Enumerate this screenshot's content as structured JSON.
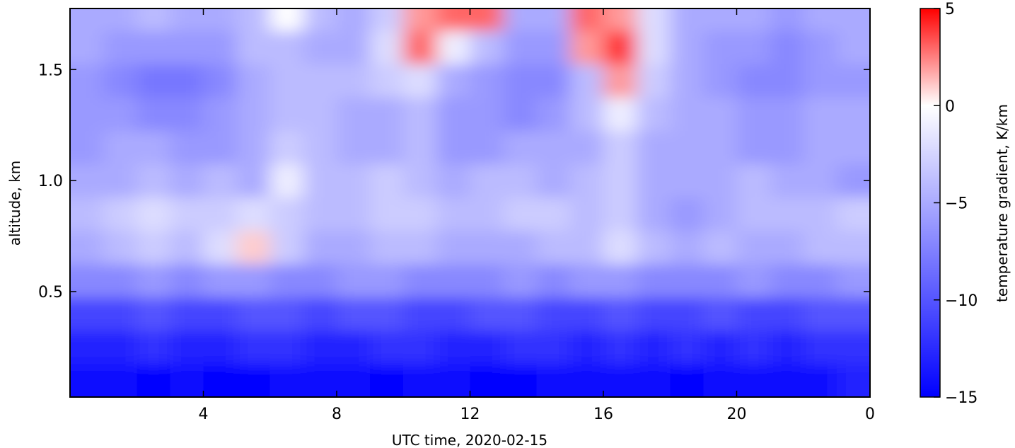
{
  "chart_data": {
    "type": "heatmap",
    "xlabel": "UTC time,  2020-02-15",
    "ylabel": "altitude, km",
    "colorbar_label": "temperature gradient, K/km",
    "xlim": [
      0,
      24
    ],
    "xticks": [
      4,
      8,
      12,
      16,
      20,
      {
        "value": 24,
        "label": "0"
      }
    ],
    "ylim": [
      0.025,
      1.775
    ],
    "yticks": [
      0.5,
      {
        "value": 1,
        "label": "1.0"
      },
      1.5
    ],
    "clim": [
      -15,
      5
    ],
    "vcenter": 0,
    "cticks": [
      5,
      0,
      {
        "value": -5,
        "label": "−5"
      },
      {
        "value": -10,
        "label": "−10"
      },
      {
        "value": -15,
        "label": "−15"
      }
    ],
    "colormap": [
      "#0000ff",
      "#ffffff",
      "#ff0000"
    ],
    "x": [
      0.5,
      1.5,
      2.5,
      3.5,
      4.5,
      5.5,
      6.5,
      7.5,
      8.5,
      9.5,
      10.5,
      11.5,
      12.5,
      13.5,
      14.5,
      15.5,
      16.5,
      17.5,
      18.5,
      19.5,
      20.5,
      21.5,
      22.5,
      23.5
    ],
    "y": [
      0.1,
      0.25,
      0.4,
      0.55,
      0.7,
      0.85,
      1.0,
      1.15,
      1.3,
      1.45,
      1.6,
      1.75
    ],
    "z": [
      [
        -14,
        -14,
        -15,
        -14,
        -15,
        -15,
        -14,
        -14,
        -14,
        -15,
        -14,
        -14,
        -15,
        -15,
        -14,
        -14,
        -14,
        -14,
        -15,
        -14,
        -14,
        -14,
        -14,
        -13
      ],
      [
        -13,
        -13,
        -12,
        -13,
        -13,
        -12,
        -12,
        -13,
        -13,
        -12,
        -12,
        -13,
        -13,
        -12,
        -12,
        -13,
        -12,
        -13,
        -12,
        -13,
        -12,
        -13,
        -12,
        -12
      ],
      [
        -11,
        -11,
        -10,
        -11,
        -11,
        -10,
        -10,
        -11,
        -10,
        -10,
        -11,
        -11,
        -10,
        -10,
        -11,
        -11,
        -10,
        -11,
        -11,
        -10,
        -11,
        -11,
        -10,
        -10
      ],
      [
        -7,
        -7,
        -6,
        -7,
        -6,
        -6,
        -7,
        -7,
        -6,
        -6,
        -7,
        -7,
        -7,
        -6,
        -7,
        -6,
        -6,
        -7,
        -7,
        -7,
        -6,
        -7,
        -7,
        -6
      ],
      [
        -5,
        -4,
        -3,
        -4,
        -2,
        1,
        -3,
        -5,
        -5,
        -4,
        -4,
        -5,
        -5,
        -5,
        -4,
        -4,
        -2,
        -4,
        -5,
        -4,
        -5,
        -5,
        -4,
        -4
      ],
      [
        -4,
        -3,
        -2,
        -3,
        -3,
        -2,
        -3,
        -4,
        -4,
        -3,
        -3,
        -4,
        -4,
        -3,
        -3,
        -4,
        -3,
        -5,
        -6,
        -5,
        -4,
        -4,
        -4,
        -3
      ],
      [
        -5,
        -5,
        -4,
        -5,
        -4,
        -5,
        -1,
        -4,
        -4,
        -3,
        -4,
        -5,
        -4,
        -4,
        -5,
        -4,
        -3,
        -5,
        -5,
        -5,
        -4,
        -5,
        -5,
        -6
      ],
      [
        -6,
        -5,
        -5,
        -6,
        -6,
        -5,
        -3,
        -4,
        -5,
        -5,
        -4,
        -6,
        -6,
        -5,
        -5,
        -5,
        -3,
        -5,
        -5,
        -5,
        -6,
        -6,
        -5,
        -5
      ],
      [
        -6,
        -6,
        -7,
        -7,
        -6,
        -5,
        -4,
        -4,
        -5,
        -5,
        -4,
        -6,
        -6,
        -7,
        -6,
        -4,
        -1,
        -4,
        -5,
        -5,
        -6,
        -6,
        -5,
        -5
      ],
      [
        -6,
        -7,
        -8,
        -8,
        -7,
        -5,
        -4,
        -4,
        -4,
        -3,
        -2,
        -5,
        -6,
        -7,
        -7,
        -4,
        2,
        -3,
        -5,
        -6,
        -7,
        -7,
        -6,
        -6
      ],
      [
        -5,
        -6,
        -6,
        -6,
        -6,
        -4,
        -4,
        -5,
        -5,
        -2,
        3,
        -1,
        -4,
        -6,
        -6,
        2,
        4,
        -2,
        -5,
        -6,
        -6,
        -7,
        -6,
        -5
      ],
      [
        -5,
        -5,
        -4,
        -5,
        -5,
        -4,
        0,
        -4,
        -5,
        -3,
        2,
        3,
        3,
        -5,
        -5,
        3,
        2,
        -2,
        -5,
        -5,
        -5,
        -6,
        -5,
        -5
      ]
    ]
  }
}
